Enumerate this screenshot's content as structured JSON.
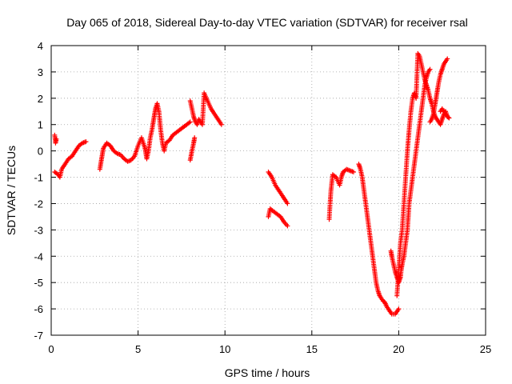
{
  "chart_data": {
    "type": "scatter",
    "title": "Day 065 of 2018, Sidereal Day-to-day VTEC variation (SDTVAR) for receiver rsal",
    "xlabel": "GPS time / hours",
    "ylabel": "SDTVAR / TECUs",
    "xlim": [
      0,
      25
    ],
    "ylim": [
      -7,
      4
    ],
    "xticks": [
      "0",
      "5",
      "10",
      "15",
      "20",
      "25"
    ],
    "yticks": [
      "-7",
      "-6",
      "-5",
      "-4",
      "-3",
      "-2",
      "-1",
      "0",
      "1",
      "2",
      "3",
      "4"
    ],
    "grid": true,
    "marker": "plus",
    "color": "#ff0000",
    "segments": [
      [
        [
          0.2,
          0.6
        ],
        [
          0.25,
          0.3
        ],
        [
          0.3,
          0.45
        ]
      ],
      [
        [
          0.2,
          -0.8
        ],
        [
          0.4,
          -0.9
        ],
        [
          0.5,
          -1.0
        ],
        [
          0.6,
          -0.7
        ],
        [
          0.8,
          -0.5
        ],
        [
          1.0,
          -0.3
        ],
        [
          1.2,
          -0.2
        ],
        [
          1.4,
          0.0
        ],
        [
          1.6,
          0.2
        ],
        [
          1.8,
          0.3
        ],
        [
          2.0,
          0.35
        ]
      ],
      [
        [
          2.8,
          -0.7
        ],
        [
          2.9,
          -0.3
        ],
        [
          3.0,
          0.1
        ],
        [
          3.2,
          0.3
        ],
        [
          3.4,
          0.2
        ],
        [
          3.6,
          0.0
        ],
        [
          3.8,
          -0.1
        ],
        [
          4.0,
          -0.15
        ],
        [
          4.2,
          -0.3
        ],
        [
          4.4,
          -0.4
        ],
        [
          4.6,
          -0.35
        ],
        [
          4.8,
          -0.2
        ],
        [
          5.0,
          0.2
        ],
        [
          5.2,
          0.5
        ],
        [
          5.4,
          0.1
        ],
        [
          5.5,
          -0.3
        ],
        [
          5.6,
          0.0
        ],
        [
          5.7,
          0.5
        ],
        [
          5.8,
          0.8
        ],
        [
          5.9,
          1.2
        ],
        [
          6.0,
          1.6
        ],
        [
          6.1,
          1.8
        ],
        [
          6.2,
          1.5
        ],
        [
          6.3,
          0.8
        ],
        [
          6.4,
          0.3
        ],
        [
          6.5,
          0.0
        ],
        [
          6.6,
          0.3
        ],
        [
          6.8,
          0.4
        ],
        [
          7.0,
          0.6
        ],
        [
          7.2,
          0.7
        ],
        [
          7.4,
          0.8
        ],
        [
          7.6,
          0.9
        ],
        [
          7.8,
          1.0
        ],
        [
          8.0,
          1.1
        ]
      ],
      [
        [
          8.0,
          -0.35
        ],
        [
          8.1,
          0.0
        ],
        [
          8.2,
          0.3
        ],
        [
          8.25,
          0.5
        ]
      ],
      [
        [
          8.0,
          1.9
        ],
        [
          8.1,
          1.6
        ],
        [
          8.2,
          1.3
        ],
        [
          8.3,
          1.1
        ],
        [
          8.4,
          1.0
        ],
        [
          8.5,
          1.2
        ],
        [
          8.6,
          1.1
        ],
        [
          8.7,
          1.0
        ],
        [
          8.8,
          2.2
        ],
        [
          9.0,
          1.9
        ],
        [
          9.2,
          1.6
        ],
        [
          9.4,
          1.4
        ],
        [
          9.6,
          1.2
        ],
        [
          9.8,
          1.0
        ]
      ],
      [
        [
          12.5,
          -0.8
        ],
        [
          12.7,
          -1.0
        ],
        [
          12.9,
          -1.3
        ],
        [
          13.1,
          -1.5
        ],
        [
          13.3,
          -1.7
        ],
        [
          13.5,
          -1.9
        ],
        [
          13.6,
          -2.0
        ]
      ],
      [
        [
          12.5,
          -2.5
        ],
        [
          12.6,
          -2.2
        ],
        [
          12.8,
          -2.3
        ],
        [
          13.0,
          -2.4
        ],
        [
          13.2,
          -2.5
        ],
        [
          13.4,
          -2.7
        ],
        [
          13.6,
          -2.85
        ]
      ],
      [
        [
          16.0,
          -2.6
        ],
        [
          16.05,
          -2.0
        ],
        [
          16.1,
          -1.5
        ],
        [
          16.15,
          -1.2
        ],
        [
          16.2,
          -0.9
        ],
        [
          16.4,
          -1.0
        ],
        [
          16.6,
          -1.3
        ],
        [
          16.7,
          -1.0
        ],
        [
          16.8,
          -0.8
        ],
        [
          17.0,
          -0.7
        ],
        [
          17.2,
          -0.75
        ],
        [
          17.4,
          -0.8
        ]
      ],
      [
        [
          17.7,
          -0.5
        ],
        [
          17.8,
          -0.7
        ],
        [
          17.9,
          -1.0
        ],
        [
          18.0,
          -1.5
        ],
        [
          18.1,
          -2.0
        ],
        [
          18.2,
          -2.5
        ],
        [
          18.3,
          -3.0
        ],
        [
          18.4,
          -3.5
        ],
        [
          18.5,
          -4.0
        ],
        [
          18.6,
          -4.5
        ],
        [
          18.7,
          -5.0
        ],
        [
          18.8,
          -5.3
        ],
        [
          18.9,
          -5.5
        ],
        [
          19.0,
          -5.6
        ],
        [
          19.1,
          -5.7
        ],
        [
          19.2,
          -5.75
        ],
        [
          19.3,
          -5.9
        ],
        [
          19.4,
          -6.0
        ],
        [
          19.5,
          -6.1
        ],
        [
          19.6,
          -6.2
        ],
        [
          19.7,
          -6.2
        ],
        [
          19.8,
          -6.2
        ],
        [
          19.9,
          -6.1
        ],
        [
          20.0,
          -6.0
        ]
      ],
      [
        [
          19.55,
          -3.8
        ],
        [
          19.6,
          -4.0
        ],
        [
          19.7,
          -4.3
        ],
        [
          19.8,
          -4.6
        ],
        [
          19.9,
          -4.8
        ],
        [
          20.0,
          -5.0
        ],
        [
          20.1,
          -4.8
        ],
        [
          20.15,
          -4.5
        ],
        [
          20.2,
          -4.3
        ],
        [
          20.3,
          -4.0
        ],
        [
          20.4,
          -3.5
        ],
        [
          20.5,
          -3.0
        ],
        [
          20.55,
          -2.5
        ],
        [
          20.6,
          -2.0
        ],
        [
          20.7,
          -1.5
        ],
        [
          20.8,
          -1.0
        ],
        [
          20.9,
          -0.5
        ],
        [
          21.0,
          0.0
        ],
        [
          21.1,
          0.5
        ],
        [
          21.2,
          1.0
        ],
        [
          21.3,
          1.5
        ],
        [
          21.4,
          2.0
        ],
        [
          21.5,
          2.5
        ],
        [
          21.6,
          2.8
        ],
        [
          21.7,
          3.0
        ],
        [
          21.8,
          3.1
        ]
      ],
      [
        [
          19.9,
          -5.5
        ],
        [
          20.0,
          -4.5
        ],
        [
          20.1,
          -3.5
        ],
        [
          20.2,
          -3.0
        ],
        [
          20.3,
          -2.0
        ],
        [
          20.4,
          -1.0
        ],
        [
          20.5,
          0.0
        ],
        [
          20.6,
          0.8
        ],
        [
          20.7,
          1.5
        ],
        [
          20.8,
          2.0
        ],
        [
          20.9,
          2.2
        ],
        [
          21.0,
          2.0
        ],
        [
          21.1,
          3.7
        ],
        [
          21.2,
          3.6
        ],
        [
          21.3,
          3.3
        ],
        [
          21.4,
          3.0
        ],
        [
          21.5,
          2.7
        ],
        [
          21.6,
          2.5
        ],
        [
          21.7,
          2.3
        ],
        [
          21.8,
          2.0
        ],
        [
          21.9,
          1.8
        ],
        [
          22.0,
          1.5
        ],
        [
          22.1,
          1.3
        ],
        [
          22.2,
          1.2
        ],
        [
          22.3,
          1.1
        ],
        [
          22.4,
          1.0
        ],
        [
          22.5,
          1.2
        ],
        [
          22.6,
          1.4
        ],
        [
          22.7,
          1.5
        ],
        [
          22.8,
          1.3
        ]
      ],
      [
        [
          21.8,
          1.1
        ],
        [
          21.9,
          1.2
        ],
        [
          22.0,
          1.4
        ],
        [
          22.1,
          1.8
        ],
        [
          22.2,
          2.2
        ],
        [
          22.3,
          2.6
        ],
        [
          22.4,
          2.9
        ],
        [
          22.5,
          3.1
        ],
        [
          22.6,
          3.3
        ],
        [
          22.7,
          3.4
        ],
        [
          22.8,
          3.5
        ]
      ],
      [
        [
          22.4,
          1.5
        ],
        [
          22.5,
          1.6
        ],
        [
          22.6,
          1.5
        ],
        [
          22.7,
          1.4
        ],
        [
          22.8,
          1.3
        ],
        [
          22.9,
          1.25
        ]
      ]
    ]
  }
}
